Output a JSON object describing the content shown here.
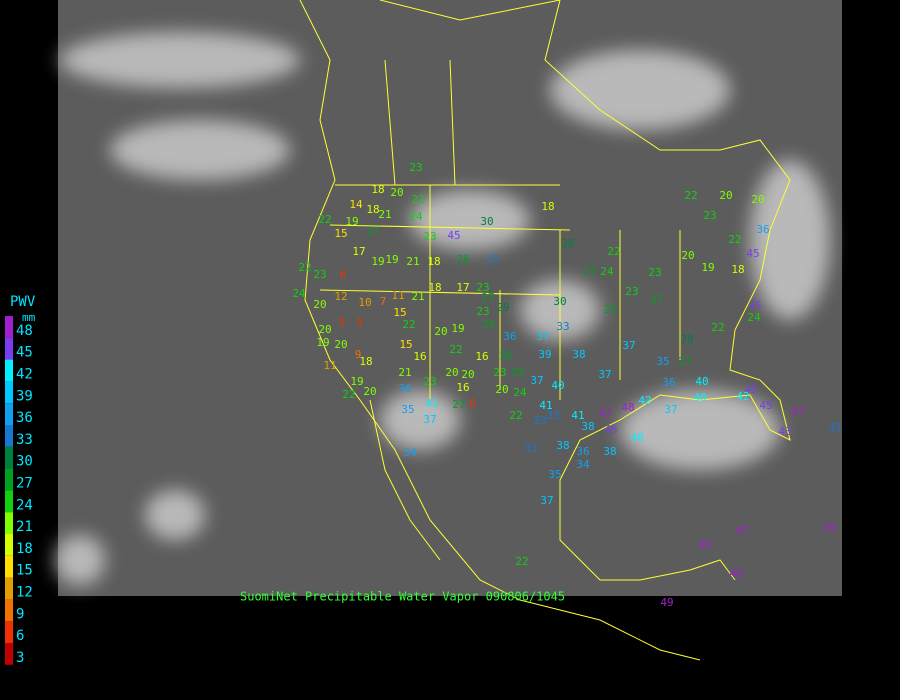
{
  "legend": {
    "title": "PWV",
    "unit": "mm",
    "levels": [
      48,
      45,
      42,
      39,
      36,
      33,
      30,
      27,
      24,
      21,
      18,
      15,
      12,
      9,
      6,
      3
    ],
    "colors": [
      "#a020d0",
      "#7a3cf0",
      "#00f0ff",
      "#00c8ff",
      "#10a0f0",
      "#1878d0",
      "#008040",
      "#00a020",
      "#10d010",
      "#80ff00",
      "#d8ff00",
      "#ffe000",
      "#e0a000",
      "#f07000",
      "#f03000",
      "#c00000"
    ]
  },
  "caption": "SuomiNet Precipitable Water Vapor 090806/1045",
  "stations": [
    23,
    18,
    20,
    14,
    18,
    22,
    22,
    19,
    21,
    24,
    30,
    18,
    28,
    22,
    22,
    20,
    20,
    23,
    22,
    36,
    45,
    15,
    27,
    17,
    19,
    19,
    21,
    18,
    26,
    45,
    23,
    32,
    27,
    24,
    23,
    20,
    19,
    18,
    22,
    23,
    6,
    24,
    20,
    12,
    10,
    7,
    11,
    21,
    18,
    17,
    23,
    29,
    27,
    23,
    30,
    25,
    23,
    27,
    20,
    5,
    5,
    15,
    22,
    20,
    19,
    25,
    36,
    37,
    33,
    19,
    20,
    9,
    18,
    11,
    15,
    16,
    22,
    16,
    26,
    39,
    38,
    37,
    29,
    22,
    24,
    45,
    35,
    27,
    19,
    21,
    23,
    20,
    20,
    16,
    23,
    25,
    37,
    40,
    37,
    36,
    40,
    45,
    36,
    20,
    22,
    41,
    27,
    6,
    20,
    24,
    41,
    33,
    41,
    47,
    48,
    42,
    37,
    40,
    42,
    45,
    47,
    43,
    35,
    37,
    22,
    33,
    38,
    45,
    33,
    38,
    36,
    38,
    40,
    34,
    35,
    34,
    37,
    22,
    47,
    49,
    49,
    49,
    49,
    31
  ]
}
